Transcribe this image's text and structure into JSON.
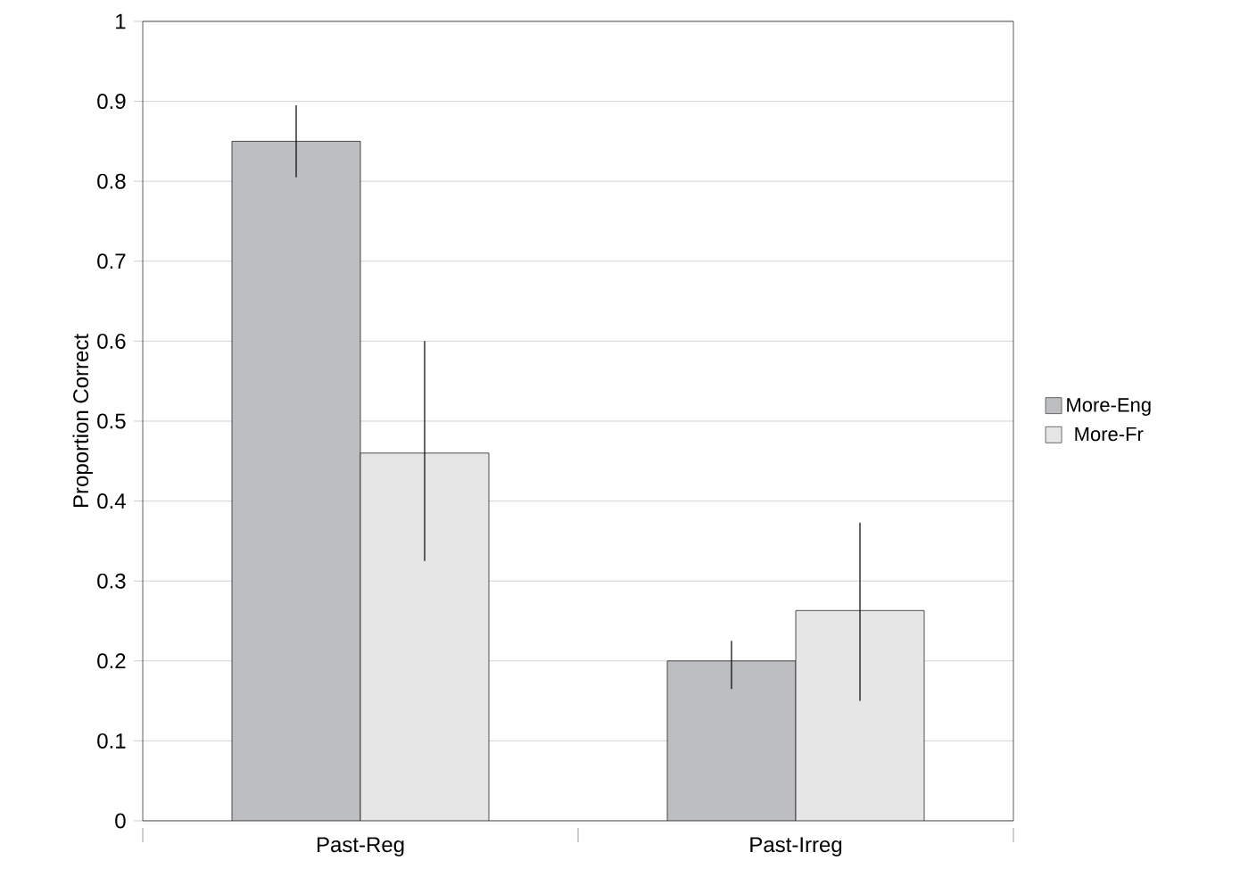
{
  "chart_data": {
    "type": "bar",
    "ylabel": "Proportion Correct",
    "categories": [
      "Past-Reg",
      "Past-Irreg"
    ],
    "series": [
      {
        "name": "More-Eng",
        "color": "#bdbec2",
        "values": [
          0.85,
          0.2
        ],
        "errors": [
          [
            0.805,
            0.895
          ],
          [
            0.165,
            0.225
          ]
        ]
      },
      {
        "name": "More-Fr",
        "color": "#e6e6e6",
        "values": [
          0.46,
          0.263
        ],
        "errors": [
          [
            0.325,
            0.6
          ],
          [
            0.15,
            0.373
          ]
        ]
      }
    ],
    "ylim": [
      0,
      1
    ],
    "yticks": [
      0,
      0.1,
      0.2,
      0.3,
      0.4,
      0.5,
      0.6,
      0.7,
      0.8,
      0.9,
      1
    ],
    "grid": "y",
    "legend": "right"
  }
}
